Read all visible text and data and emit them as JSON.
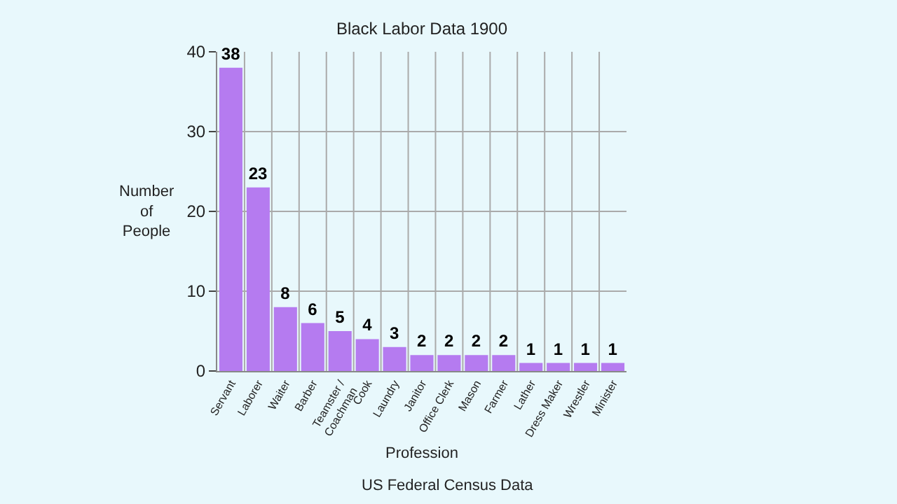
{
  "chart_data": {
    "type": "bar",
    "title": "Black Labor Data 1900",
    "xlabel": "Profession",
    "ylabel": "Number of People",
    "annotations": [
      "US Federal Census Data"
    ],
    "categories": [
      "Servant",
      "Laborer",
      "Waiter",
      "Barber",
      "Teamster /\nCoachman",
      "Cook",
      "Laundry",
      "Janitor",
      "Office Clerk",
      "Mason",
      "Farmer",
      "Lather",
      "Dress Maker",
      "Wrestler",
      "Minister"
    ],
    "values": [
      38,
      23,
      8,
      6,
      5,
      4,
      3,
      2,
      2,
      2,
      2,
      1,
      1,
      1,
      1
    ],
    "color": "#b57bf0",
    "ylim": [
      0,
      40
    ],
    "yticks": [
      0,
      10,
      20,
      30,
      40
    ],
    "grid": true,
    "data_labels": true,
    "legend": false
  }
}
